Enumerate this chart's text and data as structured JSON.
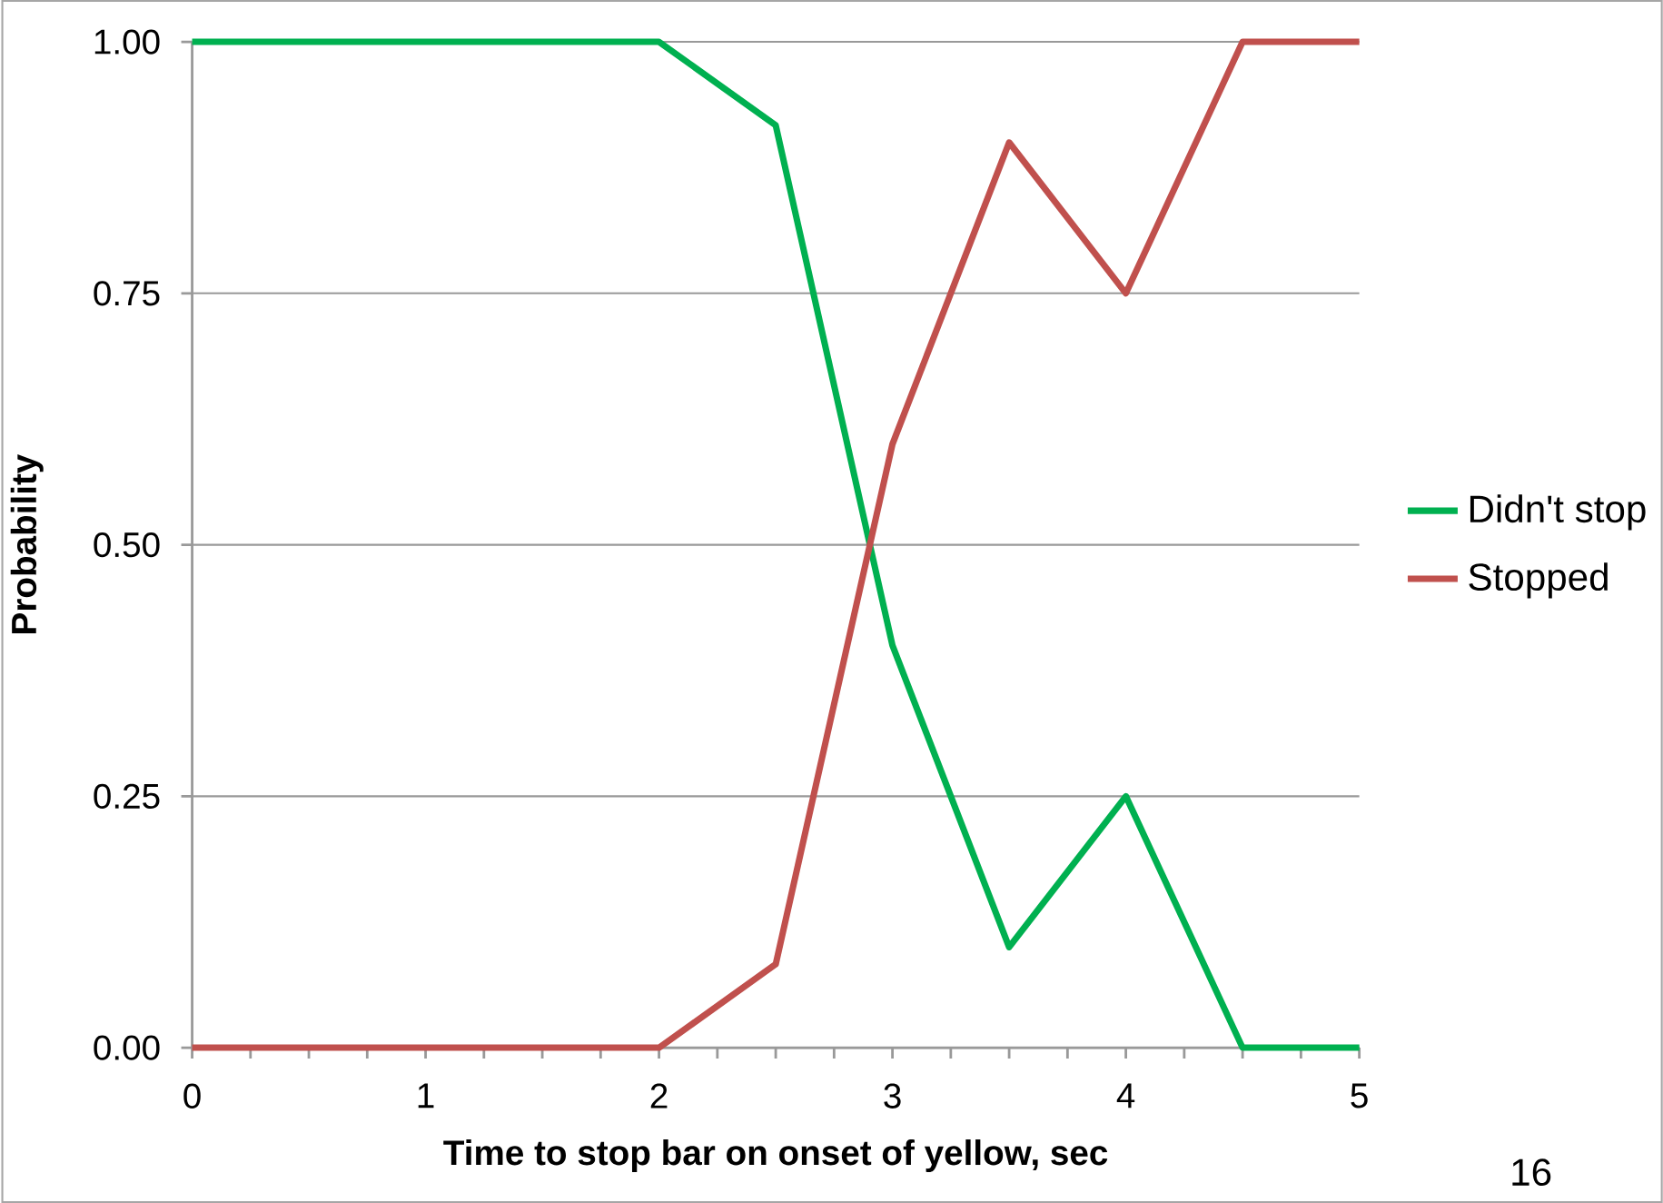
{
  "chart_data": {
    "type": "line",
    "xlabel": "Time to stop bar on onset of yellow, sec",
    "ylabel": "Probability",
    "series": [
      {
        "name": "Didn't stop",
        "color": "#00b050",
        "x": [
          0,
          2,
          2.5,
          3,
          3.5,
          4,
          4.5,
          5
        ],
        "values": [
          1,
          1,
          0.917,
          0.4,
          0.1,
          0.25,
          0,
          0
        ]
      },
      {
        "name": "Stopped",
        "color": "#c0504d",
        "x": [
          0,
          2,
          2.5,
          3,
          3.5,
          4,
          4.5,
          5
        ],
        "values": [
          0,
          0,
          0.083,
          0.6,
          0.9,
          0.75,
          1,
          1
        ]
      }
    ],
    "xlim": [
      0,
      5
    ],
    "ylim": [
      0,
      1
    ],
    "xticks": [
      0,
      {
        "value": 0.25,
        "label": null
      },
      {
        "value": 0.5,
        "label": null
      },
      {
        "value": 0.75,
        "label": null
      },
      1,
      {
        "value": 1.25,
        "label": null
      },
      {
        "value": 1.5,
        "label": null
      },
      {
        "value": 1.75,
        "label": null
      },
      2,
      {
        "value": 2.25,
        "label": null
      },
      {
        "value": 2.5,
        "label": null
      },
      {
        "value": 2.75,
        "label": null
      },
      3,
      {
        "value": 3.25,
        "label": null
      },
      {
        "value": 3.5,
        "label": null
      },
      {
        "value": 3.75,
        "label": null
      },
      4,
      {
        "value": 4.25,
        "label": null
      },
      {
        "value": 4.5,
        "label": null
      },
      {
        "value": 4.75,
        "label": null
      },
      5
    ],
    "yticks": [
      {
        "value": 0,
        "label": "0.00"
      },
      {
        "value": 0.25,
        "label": "0.25"
      },
      {
        "value": 0.5,
        "label": "0.50"
      },
      {
        "value": 0.75,
        "label": "0.75"
      },
      {
        "value": 1,
        "label": "1.00"
      }
    ],
    "grid": "y",
    "legend": "right",
    "marker": "none",
    "line_style": "solid",
    "annotations": [
      "16"
    ]
  }
}
